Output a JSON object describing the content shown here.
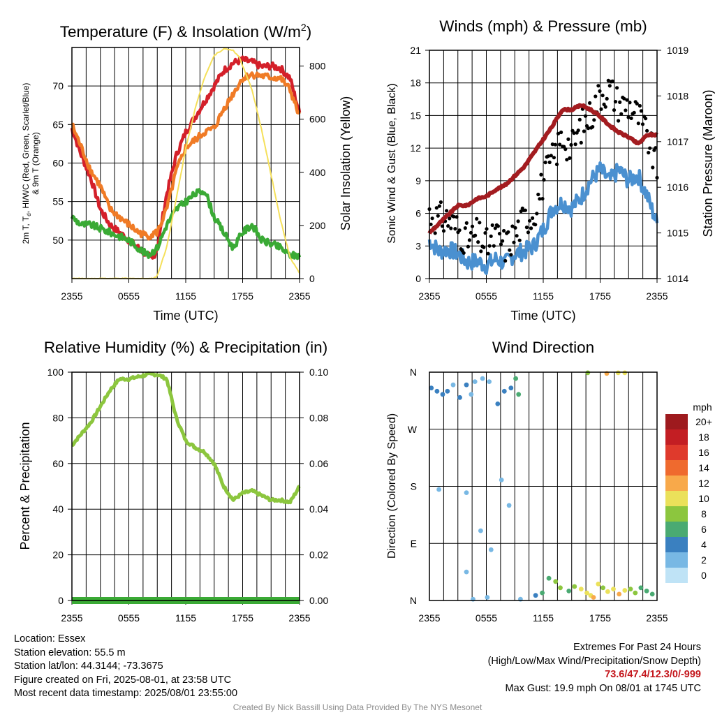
{
  "panels": {
    "temperature": {
      "title_main": "Temperature (F) & Insolation (W/m",
      "title_sup": "2",
      "title_end": ")",
      "ylabel_left_line1_a": "2m T, T",
      "ylabel_left_line1_sub": "d",
      "ylabel_left_line1_b": ", HI/WC (Red, Green, Scarlet/Blue)",
      "ylabel_left_line2": "& 9m T (Orange)",
      "ylabel_right": "Solar Insolation (Yellow)",
      "xlabel": "Time (UTC)"
    },
    "winds": {
      "title": "Winds (mph) & Pressure (mb)",
      "ylabel_left": "Sonic Wind & Gust (Blue, Black)",
      "ylabel_right": "Station Pressure (Maroon)",
      "xlabel": "Time (UTC)"
    },
    "humidity": {
      "title": "Relative Humidity (%) & Precipitation (in)",
      "ylabel_left": "Percent & Precipitation"
    },
    "direction": {
      "title": "Wind Direction",
      "ylabel_left": "Direction (Colored By Speed)",
      "colorbar_title": "mph"
    }
  },
  "chart_data": [
    {
      "type": "line",
      "panel": "temperature",
      "x_ticks": [
        "2355",
        "0555",
        "1155",
        "1755",
        "2355"
      ],
      "x_range_hours": [
        0,
        24
      ],
      "y_left": {
        "ylim": [
          45,
          75
        ],
        "ticks": [
          50,
          55,
          60,
          65,
          70
        ]
      },
      "y_right": {
        "ylim": [
          0,
          870
        ],
        "ticks": [
          0,
          200,
          400,
          600,
          800
        ]
      },
      "grid": true,
      "series": [
        {
          "color": "#d4202a",
          "axis": "left",
          "hours": [
            0,
            1,
            2,
            3,
            4,
            5,
            6,
            7,
            8,
            8.5,
            9,
            10,
            11,
            12,
            13,
            14,
            15,
            16,
            17,
            18,
            19,
            20,
            21,
            22,
            23,
            24
          ],
          "values": [
            64.5,
            61,
            58,
            54,
            52,
            51,
            50,
            49,
            48,
            47.5,
            49,
            56,
            61,
            64,
            66,
            68,
            70,
            72,
            73,
            73.4,
            73.1,
            72.5,
            72.6,
            72.3,
            71,
            66.5
          ]
        },
        {
          "color": "#f07b26",
          "axis": "left",
          "hours": [
            0,
            1,
            2,
            3,
            4,
            5,
            6,
            7,
            8,
            9,
            10,
            11,
            12,
            13,
            14,
            15,
            16,
            17,
            18,
            19,
            20,
            21,
            22,
            23,
            24
          ],
          "values": [
            65,
            62,
            59,
            57,
            54,
            53,
            52,
            51,
            50.5,
            51,
            54,
            59,
            62,
            63,
            64,
            64.5,
            67,
            69,
            71,
            71.5,
            71.3,
            71.1,
            71,
            69.5,
            66
          ]
        },
        {
          "color": "#3aaa35",
          "axis": "left",
          "hours": [
            0,
            1,
            2,
            3,
            4,
            5,
            6,
            7,
            8,
            9,
            10,
            11,
            12,
            13,
            14,
            15,
            16,
            17,
            18,
            19,
            20,
            21,
            22,
            23,
            24
          ],
          "values": [
            53,
            52,
            52,
            51.5,
            51,
            50.5,
            50,
            49,
            48,
            49,
            52,
            54,
            55,
            56,
            56.5,
            53,
            51,
            49,
            51,
            52,
            50,
            49.5,
            49,
            48,
            48
          ]
        },
        {
          "color": "#f5e05a",
          "axis": "right",
          "hours": [
            0,
            3,
            6,
            8.5,
            9,
            10,
            11,
            12,
            13,
            14,
            15,
            16,
            17,
            17.7,
            18,
            19,
            20,
            21,
            22,
            23,
            24
          ],
          "values": [
            0,
            0,
            0,
            0,
            10,
            120,
            300,
            490,
            640,
            760,
            840,
            865,
            860,
            830,
            800,
            710,
            560,
            390,
            220,
            80,
            20
          ]
        }
      ]
    },
    {
      "type": "line",
      "panel": "winds",
      "x_ticks": [
        "2355",
        "0555",
        "1155",
        "1755",
        "2355"
      ],
      "x_range_hours": [
        0,
        24
      ],
      "y_left": {
        "ylim": [
          0,
          21
        ],
        "ticks": [
          0,
          3,
          6,
          9,
          12,
          15,
          18,
          21
        ]
      },
      "y_right": {
        "ylim": [
          1014,
          1019
        ],
        "ticks": [
          1014,
          1015,
          1016,
          1017,
          1018,
          1019
        ]
      },
      "grid": true,
      "series": [
        {
          "color": "#4a90d0",
          "axis": "left",
          "marker": "line",
          "hours": [
            0,
            1,
            2,
            3,
            4,
            5,
            6,
            7,
            8,
            9,
            10,
            11,
            12,
            13,
            14,
            15,
            16,
            17,
            18,
            19,
            20,
            21,
            22,
            23,
            24
          ],
          "values": [
            3.5,
            2.5,
            2.7,
            2.3,
            1.5,
            1.6,
            1.2,
            1.8,
            1.4,
            2.3,
            2.5,
            3,
            4.5,
            6.5,
            7,
            6.5,
            7.5,
            9,
            10,
            9,
            10,
            9,
            9.5,
            7.5,
            5
          ]
        },
        {
          "color": "#000000",
          "axis": "left",
          "marker": "dot",
          "hours": [
            0,
            1,
            2,
            3,
            4,
            5,
            6,
            7,
            8,
            9,
            10,
            11,
            12,
            13,
            14,
            15,
            16,
            17,
            18,
            19,
            20,
            21,
            22,
            23,
            24
          ],
          "values": [
            6,
            5.5,
            5.5,
            4.5,
            3.5,
            4,
            3,
            4,
            3,
            4,
            5.5,
            6,
            9,
            11,
            13,
            12,
            14,
            15,
            17,
            17.5,
            16,
            16,
            15,
            13,
            10
          ]
        },
        {
          "color": "#a31c20",
          "axis": "right",
          "marker": "line",
          "hours": [
            0,
            1,
            2,
            3,
            4,
            5,
            6,
            7,
            8,
            9,
            10,
            11,
            12,
            13,
            14,
            15,
            16,
            17,
            18,
            19,
            20,
            21,
            22,
            23,
            24
          ],
          "values": [
            1015,
            1015.2,
            1015.4,
            1015.6,
            1015.6,
            1015.75,
            1015.8,
            1015.95,
            1016.05,
            1016.25,
            1016.45,
            1016.75,
            1017.05,
            1017.35,
            1017.7,
            1017.7,
            1017.8,
            1017.7,
            1017.55,
            1017.35,
            1017.2,
            1017.1,
            1016.95,
            1017.15,
            1017.15
          ]
        }
      ]
    },
    {
      "type": "line",
      "panel": "humidity",
      "x_ticks": [
        "2355",
        "0555",
        "1155",
        "1755",
        "2355"
      ],
      "x_range_hours": [
        0,
        24
      ],
      "y_left": {
        "ylim": [
          0,
          100
        ],
        "ticks": [
          0,
          20,
          40,
          60,
          80,
          100
        ]
      },
      "y_right": {
        "ylim": [
          0,
          0.1
        ],
        "ticks": [
          "0.00",
          "0.02",
          "0.04",
          "0.06",
          "0.08",
          "0.10"
        ]
      },
      "grid": true,
      "series": [
        {
          "color": "#8cc63e",
          "axis": "left",
          "hours": [
            0,
            1,
            2,
            3,
            4,
            5,
            6,
            7,
            8,
            9,
            10,
            11,
            12,
            13,
            14,
            15,
            16,
            17,
            18,
            19,
            20,
            21,
            22,
            23,
            24
          ],
          "values": [
            68,
            73,
            78,
            85,
            92,
            97,
            97,
            98,
            99,
            99,
            97,
            80,
            70,
            67,
            65,
            60,
            50,
            44,
            47,
            48,
            46,
            44,
            44,
            43,
            50
          ]
        },
        {
          "color": "#3aaa35",
          "axis": "right",
          "hours": [
            0,
            24
          ],
          "values": [
            0,
            0
          ]
        }
      ]
    },
    {
      "type": "scatter",
      "panel": "direction",
      "x_ticks": [
        "2355",
        "0555",
        "1155",
        "1755",
        "2355"
      ],
      "x_range_hours": [
        0,
        24
      ],
      "y_ticks": [
        "N",
        "E",
        "S",
        "W",
        "N"
      ],
      "ylim_degrees": [
        0,
        360
      ],
      "grid": true,
      "points": [
        [
          0.2,
          335,
          3
        ],
        [
          0.8,
          330,
          4
        ],
        [
          1.4,
          325,
          3
        ],
        [
          1.9,
          330,
          4
        ],
        [
          2.5,
          340,
          2
        ],
        [
          3.2,
          320,
          4
        ],
        [
          3.9,
          340,
          3
        ],
        [
          4.4,
          325,
          2
        ],
        [
          4.8,
          345,
          1
        ],
        [
          5.6,
          350,
          2
        ],
        [
          6.3,
          345,
          1
        ],
        [
          7.2,
          310,
          3
        ],
        [
          7.9,
          330,
          4
        ],
        [
          8.6,
          335,
          3
        ],
        [
          9.1,
          350,
          6
        ],
        [
          9.4,
          325,
          5
        ],
        [
          1.0,
          175,
          1
        ],
        [
          3.9,
          45,
          1
        ],
        [
          3.9,
          170,
          1
        ],
        [
          4.6,
          2,
          1
        ],
        [
          5.4,
          110,
          1
        ],
        [
          6.1,
          5,
          2
        ],
        [
          6.5,
          80,
          1
        ],
        [
          7.6,
          190,
          1
        ],
        [
          8.4,
          150,
          1
        ],
        [
          9.6,
          2,
          2
        ],
        [
          11.2,
          8,
          4
        ],
        [
          11.9,
          12,
          6
        ],
        [
          12.6,
          35,
          5
        ],
        [
          13.3,
          30,
          7
        ],
        [
          13.8,
          20,
          8
        ],
        [
          14.7,
          15,
          6
        ],
        [
          15.3,
          22,
          8
        ],
        [
          16.0,
          18,
          10
        ],
        [
          16.6,
          12,
          9
        ],
        [
          17.0,
          8,
          9
        ],
        [
          17.3,
          5,
          11
        ],
        [
          17.8,
          26,
          10
        ],
        [
          18.3,
          20,
          8
        ],
        [
          18.8,
          14,
          10
        ],
        [
          19.4,
          18,
          9
        ],
        [
          20.0,
          10,
          11
        ],
        [
          20.6,
          16,
          10
        ],
        [
          21.2,
          18,
          8
        ],
        [
          21.7,
          12,
          7
        ],
        [
          22.3,
          20,
          6
        ],
        [
          22.9,
          15,
          6
        ],
        [
          23.5,
          10,
          5
        ],
        [
          16.7,
          359,
          7
        ],
        [
          18.7,
          358,
          12
        ],
        [
          19.9,
          359,
          10
        ],
        [
          20.6,
          359,
          10
        ]
      ]
    }
  ],
  "colorbar": {
    "labels": [
      "20+",
      "18",
      "16",
      "14",
      "12",
      "10",
      "8",
      "6",
      "4",
      "2",
      "0"
    ],
    "colors": [
      "#9e1a1e",
      "#c31e23",
      "#df3a2c",
      "#ef6a2e",
      "#f8a94a",
      "#ebe15a",
      "#8cc63e",
      "#4aaa72",
      "#3a80c0",
      "#78b8e4",
      "#bfe3f6"
    ]
  },
  "info": {
    "location": "Location: Essex",
    "elevation": "Station elevation: 55.5 m",
    "latlon": "Station lat/lon: 44.3144; -73.3675",
    "created": "Figure created on Fri, 2025-08-01, at 23:58 UTC",
    "recent": "Most recent data timestamp: 2025/08/01 23:55:00",
    "extremes_title": "Extremes For Past 24 Hours",
    "extremes_legend": "(High/Low/Max Wind/Precipitation/Snow Depth)",
    "extremes_values": "73.6/47.4/12.3/0/-999",
    "max_gust": "Max Gust: 19.9 mph On 08/01 at 1745 UTC",
    "credit": "Created By Nick Bassill Using Data Provided By The NYS Mesonet"
  }
}
